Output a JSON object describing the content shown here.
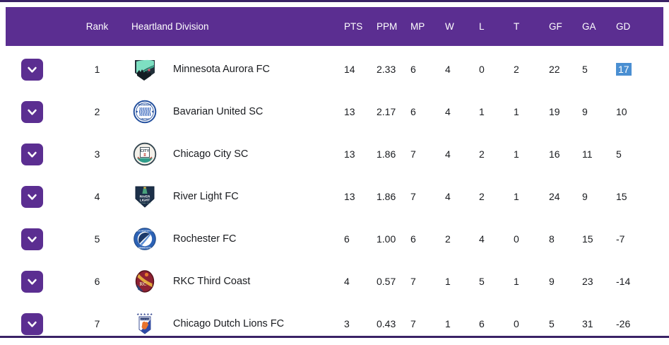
{
  "header": {
    "rank_label": "Rank",
    "division_label": "Heartland Division",
    "stat_labels": [
      "PTS",
      "PPM",
      "MP",
      "W",
      "L",
      "T",
      "GF",
      "GA",
      "GD"
    ]
  },
  "icons": {
    "row_expander": "chevron-down-icon"
  },
  "colors": {
    "header_bg": "#5b2e91",
    "expander_button_bg": "#5b2e91",
    "border_line": "#3a2266",
    "selection_bg": "#4a8fd2",
    "selection_text": "#ffffff"
  },
  "rows": [
    {
      "rank": "1",
      "logo": "minnesota-aurora-fc",
      "team": "Minnesota Aurora FC",
      "stats": [
        "14",
        "2.33",
        "6",
        "4",
        "0",
        "2",
        "22",
        "5",
        "17"
      ],
      "gd_highlighted": true
    },
    {
      "rank": "2",
      "logo": "bavarian-united-sc",
      "team": "Bavarian United SC",
      "stats": [
        "13",
        "2.17",
        "6",
        "4",
        "1",
        "1",
        "19",
        "9",
        "10"
      ],
      "gd_highlighted": false
    },
    {
      "rank": "3",
      "logo": "chicago-city-sc",
      "team": "Chicago City SC",
      "stats": [
        "13",
        "1.86",
        "7",
        "4",
        "2",
        "1",
        "16",
        "11",
        "5"
      ],
      "gd_highlighted": false
    },
    {
      "rank": "4",
      "logo": "river-light-fc",
      "team": "River Light FC",
      "stats": [
        "13",
        "1.86",
        "7",
        "4",
        "2",
        "1",
        "24",
        "9",
        "15"
      ],
      "gd_highlighted": false
    },
    {
      "rank": "5",
      "logo": "rochester-fc",
      "team": "Rochester FC",
      "stats": [
        "6",
        "1.00",
        "6",
        "2",
        "4",
        "0",
        "8",
        "15",
        "-7"
      ],
      "gd_highlighted": false
    },
    {
      "rank": "6",
      "logo": "rkc-third-coast",
      "team": "RKC Third Coast",
      "stats": [
        "4",
        "0.57",
        "7",
        "1",
        "5",
        "1",
        "9",
        "23",
        "-14"
      ],
      "gd_highlighted": false
    },
    {
      "rank": "7",
      "logo": "chicago-dutch-lions-fc",
      "team": "Chicago Dutch Lions FC",
      "stats": [
        "3",
        "0.43",
        "7",
        "1",
        "6",
        "0",
        "5",
        "31",
        "-26"
      ],
      "gd_highlighted": false
    }
  ]
}
